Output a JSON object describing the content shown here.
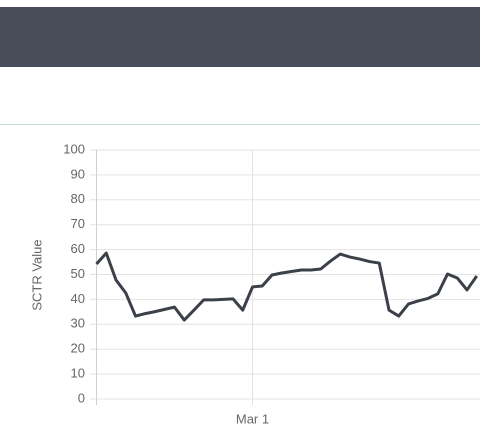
{
  "chart_data": {
    "type": "line",
    "ylabel": "SCTR Value",
    "categories": [
      null,
      null,
      null,
      null,
      null,
      null,
      null,
      null,
      null,
      null,
      null,
      null,
      null,
      null,
      null,
      null,
      "Mar 1",
      null,
      null,
      null,
      null,
      null,
      null,
      null,
      null,
      null,
      null,
      null,
      null,
      null,
      null,
      null,
      null,
      null,
      null,
      null,
      null,
      null,
      null,
      null
    ],
    "values": [
      54.2,
      58.6,
      47.8,
      42.6,
      33.3,
      34.3,
      35.1,
      36.0,
      36.9,
      31.7,
      35.7,
      39.8,
      39.8,
      40.0,
      40.2,
      35.7,
      45.0,
      45.4,
      49.8,
      50.6,
      51.2,
      51.8,
      51.8,
      52.2,
      55.4,
      58.2,
      57.0,
      56.2,
      55.2,
      54.6,
      35.7,
      33.3,
      38.2,
      39.4,
      40.4,
      42.2,
      50.2,
      48.6,
      43.8,
      49.4
    ],
    "color": "#3b4049",
    "ylim": [
      0,
      100
    ],
    "yticks": [
      0,
      10,
      20,
      30,
      40,
      50,
      60,
      70,
      80,
      90,
      100
    ],
    "grid": true
  }
}
